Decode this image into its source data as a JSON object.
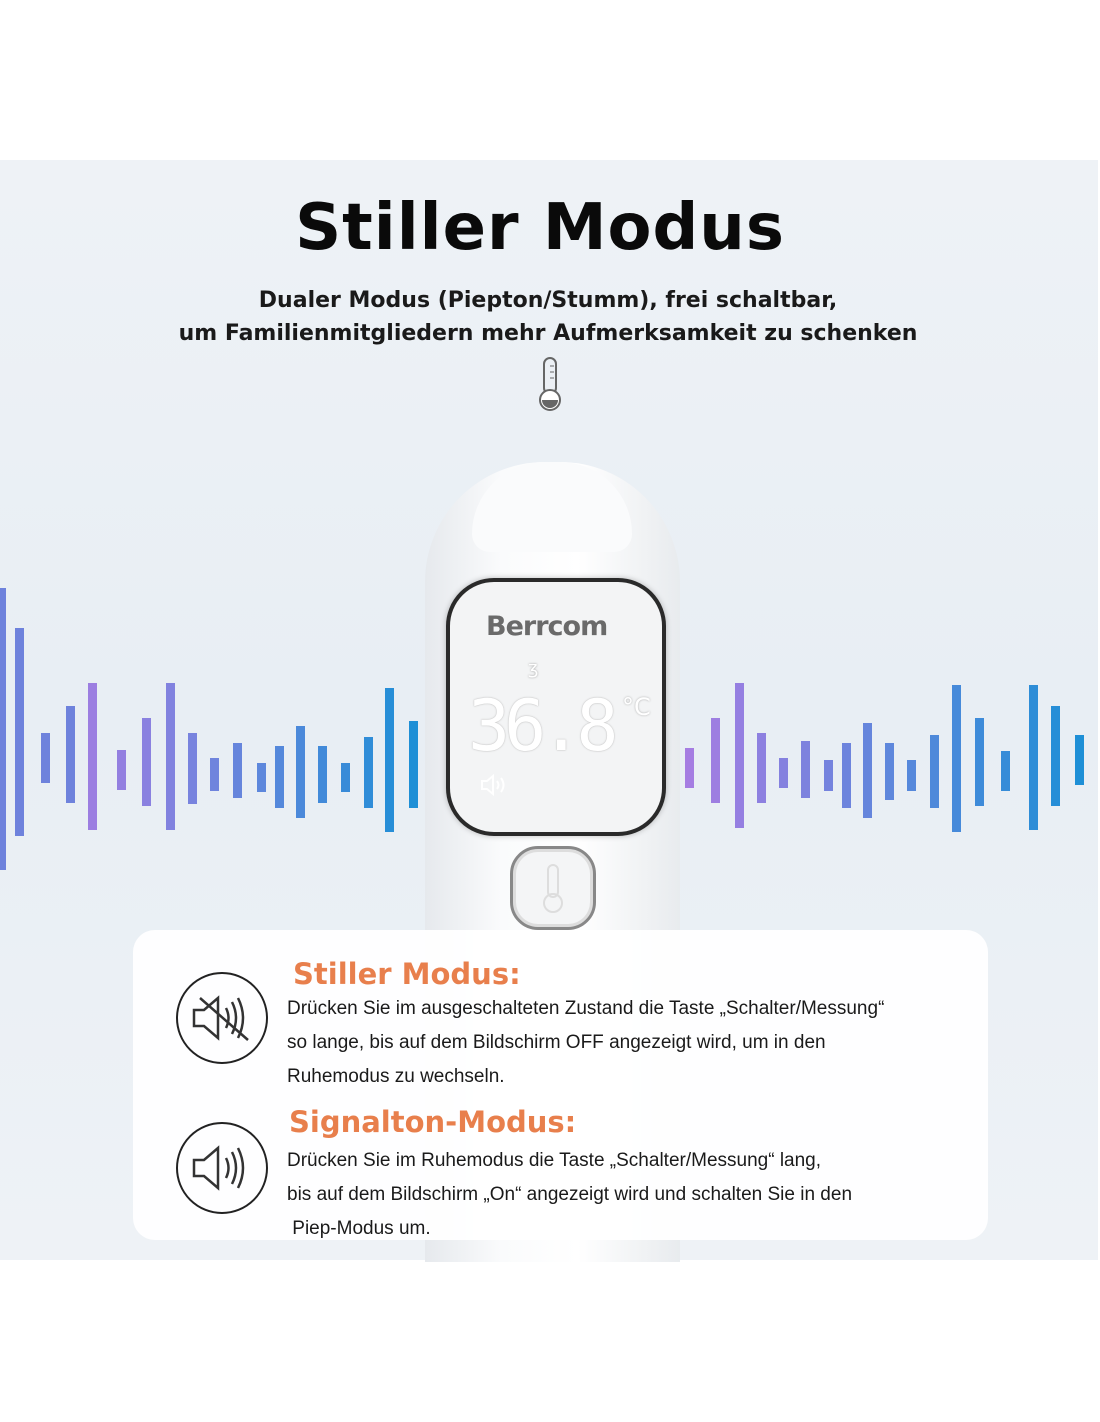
{
  "header": {
    "title": "Stiller Modus",
    "subtitle_line1": "Dualer Modus (Piepton/Stumm), frei schaltbar,",
    "subtitle_line2": "um Familienmitgliedern mehr Aufmerksamkeit zu schenken"
  },
  "device": {
    "brand": "Berrcom",
    "reading": "36.8",
    "unit": "°C",
    "icons": [
      "ear-icon",
      "speaker-icon",
      "thermometer-button-icon"
    ]
  },
  "colors": {
    "heading": "#e87f4c",
    "wave_purple": "#a57be0",
    "wave_blue": "#1e8fd6",
    "panel": "#eaf0f5"
  },
  "modes": [
    {
      "icon": "speaker-muted-icon",
      "title": "Stiller Modus:",
      "lines": [
        "Drücken Sie im ausgeschalteten Zustand die Taste „Schalter/Messung“",
        "so lange, bis auf dem Bildschirm OFF angezeigt wird, um in den",
        "Ruhemodus zu wechseln."
      ]
    },
    {
      "icon": "speaker-on-icon",
      "title": "Signalton-Modus:",
      "lines": [
        "Drücken Sie im Ruhemodus die Taste „Schalter/Messung“ lang,",
        "bis auf dem Bildschirm „On“ angezeigt wird und schalten Sie in den",
        " Piep-Modus um."
      ]
    }
  ]
}
